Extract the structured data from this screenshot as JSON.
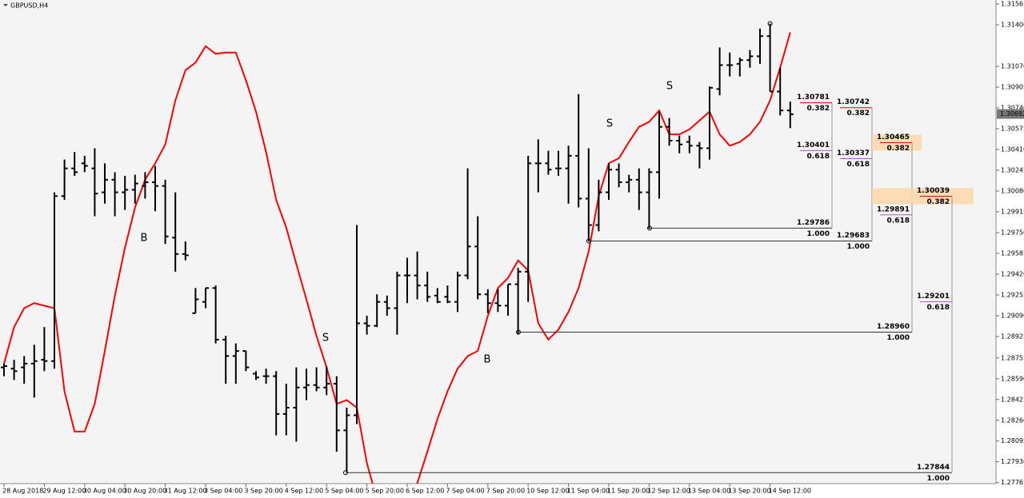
{
  "chart_data": {
    "type": "ohlc",
    "title": "GBPUSD,H4",
    "categories": [
      "28 Aug 2018",
      null,
      null,
      null,
      "29 Aug 12:00",
      null,
      null,
      null,
      "30 Aug 04:00",
      null,
      null,
      null,
      "30 Aug 20:00",
      null,
      null,
      null,
      "31 Aug 12:00",
      null,
      null,
      null,
      "3 Sep 04:00",
      null,
      null,
      null,
      "3 Sep 20:00",
      null,
      null,
      null,
      "4 Sep 12:00",
      null,
      null,
      null,
      "5 Sep 04:00",
      null,
      null,
      null,
      "5 Sep 20:00",
      null,
      null,
      null,
      "6 Sep 12:00",
      null,
      null,
      null,
      "7 Sep 04:00",
      null,
      null,
      null,
      "7 Sep 20:00",
      null,
      null,
      null,
      "10 Sep 12:00",
      null,
      null,
      null,
      "11 Sep 04:00",
      null,
      null,
      null,
      "11 Sep 20:00",
      null,
      null,
      null,
      "12 Sep 12:00",
      null,
      null,
      null,
      "13 Sep 04:00",
      null,
      null,
      null,
      "13 Sep 20:00",
      null,
      null,
      null,
      "14 Sep 12:00",
      null,
      null
    ],
    "open": [
      1.2868,
      1.2867,
      1.2868,
      1.2871,
      1.2874,
      1.2873,
      1.3004,
      1.3026,
      1.303,
      1.3026,
      1.3007,
      1.3017,
      1.3007,
      1.3009,
      1.3012,
      1.3015,
      1.3012,
      1.2971,
      1.2958,
      1.2911,
      1.292,
      1.2931,
      1.289,
      1.2877,
      1.2881,
      1.2863,
      1.2861,
      1.2861,
      1.2831,
      1.2836,
      1.2852,
      1.2854,
      1.2852,
      1.2855,
      1.2818,
      1.283,
      1.2903,
      1.2901,
      1.292,
      1.2915,
      1.2941,
      1.2941,
      1.2933,
      1.2925,
      1.2924,
      1.292,
      1.2941,
      1.2964,
      1.2926,
      1.2919,
      1.2917,
      1.2934,
      1.2944,
      1.303,
      1.303,
      1.3026,
      1.3026,
      1.3036,
      1.3002,
      1.2981,
      1.3007,
      1.3025,
      1.3015,
      1.3017,
      1.3007,
      1.3023,
      1.3059,
      1.3048,
      1.3047,
      1.3044,
      1.3042,
      1.3089,
      1.3108,
      1.3109,
      1.3112,
      1.3115,
      1.3131,
      1.3087,
      1.3072
    ],
    "high": [
      1.2871,
      1.2874,
      1.2877,
      1.2886,
      1.29,
      1.3007,
      1.3033,
      1.3039,
      1.3036,
      1.3042,
      1.303,
      1.3023,
      1.302,
      1.3021,
      1.3023,
      1.3028,
      1.3017,
      1.3007,
      1.2968,
      1.2931,
      1.2931,
      1.2933,
      1.2893,
      1.2887,
      1.2881,
      1.2865,
      1.2867,
      1.2865,
      1.2855,
      1.2868,
      1.2867,
      1.2868,
      1.2869,
      1.2861,
      1.2836,
      1.2981,
      1.2909,
      1.2926,
      1.2925,
      1.2944,
      1.2955,
      1.296,
      1.2944,
      1.2931,
      1.2933,
      1.2944,
      1.3026,
      1.2988,
      1.293,
      1.293,
      1.2934,
      1.2947,
      1.3036,
      1.3049,
      1.304,
      1.304,
      1.3044,
      1.3085,
      1.3042,
      1.3017,
      1.303,
      1.303,
      1.3021,
      1.3026,
      1.3026,
      1.3071,
      1.3066,
      1.3052,
      1.3052,
      1.3047,
      1.3091,
      1.3122,
      1.3118,
      1.3114,
      1.312,
      1.3137,
      1.3141,
      1.3106,
      1.3079
    ],
    "low": [
      1.2861,
      1.2858,
      1.2855,
      1.2844,
      1.2865,
      1.2867,
      1.3001,
      1.302,
      1.3023,
      1.2988,
      1.2998,
      1.2988,
      1.2993,
      1.2998,
      1.3002,
      1.2992,
      1.2966,
      1.2944,
      1.2953,
      1.2911,
      1.2915,
      1.2887,
      1.2855,
      1.2855,
      1.2865,
      1.2858,
      1.2855,
      1.2814,
      1.2814,
      1.2809,
      1.2842,
      1.2849,
      1.2846,
      1.2801,
      1.2785,
      1.2823,
      1.2894,
      1.29,
      1.2909,
      1.2894,
      1.2919,
      1.2922,
      1.292,
      1.2919,
      1.2919,
      1.2912,
      1.2938,
      1.2922,
      1.2911,
      1.2912,
      1.2909,
      1.2894,
      1.292,
      1.3007,
      1.3021,
      1.302,
      1.2998,
      1.2995,
      1.2968,
      1.2976,
      1.3001,
      1.3011,
      1.3007,
      1.2993,
      1.2978,
      1.3002,
      1.3044,
      1.3038,
      1.3038,
      1.3026,
      1.3033,
      1.3084,
      1.3099,
      1.3099,
      1.3106,
      1.3109,
      1.3087,
      1.3068,
      1.3058
    ],
    "close": [
      1.2869,
      1.2865,
      1.2871,
      1.2873,
      1.2873,
      1.3004,
      1.3026,
      1.3023,
      1.3028,
      1.3006,
      1.3017,
      1.3007,
      1.3009,
      1.3014,
      1.3015,
      1.3012,
      1.2972,
      1.2958,
      1.2957,
      1.2922,
      1.2931,
      1.289,
      1.2877,
      1.2881,
      1.2868,
      1.286,
      1.2861,
      1.2831,
      1.2836,
      1.2852,
      1.2854,
      1.2852,
      1.2855,
      1.2818,
      1.283,
      1.2903,
      1.2901,
      1.292,
      1.2915,
      1.2941,
      1.2941,
      1.2933,
      1.2924,
      1.292,
      1.292,
      1.2941,
      1.2964,
      1.2926,
      1.2919,
      1.2917,
      1.2934,
      1.2944,
      1.303,
      1.303,
      1.3025,
      1.3026,
      1.3036,
      1.3002,
      1.2981,
      1.3007,
      1.3025,
      1.3015,
      1.3017,
      1.3007,
      1.3023,
      1.3059,
      1.3048,
      1.3045,
      1.3044,
      1.3042,
      1.309,
      1.3108,
      1.3108,
      1.3112,
      1.3115,
      1.3131,
      1.3087,
      1.3072,
      1.3069
    ],
    "bar_color": "#000000",
    "ma": {
      "color": "#ff0000",
      "values": [
        1.2871,
        1.29,
        1.2915,
        1.2919,
        1.2917,
        1.2915,
        1.2849,
        1.2817,
        1.2817,
        1.2839,
        1.2881,
        1.2925,
        1.2963,
        1.2995,
        1.3017,
        1.303,
        1.3045,
        1.308,
        1.3104,
        1.311,
        1.3123,
        1.3117,
        1.3118,
        1.3118,
        1.3096,
        1.3071,
        1.3039,
        1.3001,
        1.2979,
        1.295,
        1.2922,
        1.2893,
        1.2868,
        1.2839,
        1.2842,
        1.2836,
        1.2792,
        1.2763,
        1.2747,
        1.2747,
        1.2754,
        1.2776,
        1.2801,
        1.2827,
        1.2849,
        1.2867,
        1.2877,
        1.2881,
        1.2909,
        1.2931,
        1.2939,
        1.2953,
        1.2945,
        1.2903,
        1.289,
        1.2898,
        1.2912,
        1.2931,
        1.296,
        1.3004,
        1.303,
        1.3034,
        1.3047,
        1.3059,
        1.3063,
        1.3072,
        1.3053,
        1.3053,
        1.3057,
        1.3064,
        1.3071,
        1.3053,
        1.3044,
        1.3047,
        1.3053,
        1.3063,
        1.308,
        1.3106,
        1.3134
      ]
    },
    "ylim": [
      1.27757,
      1.31597
    ],
    "yticks": [
      1.31565,
      {
        "value": 1.314,
        "label": "1.31400"
      },
      {
        "value": 1.3107,
        "label": "1.31070"
      },
      1.30905,
      {
        "value": 1.3074,
        "label": "1.30740"
      },
      1.30575,
      {
        "value": 1.3041,
        "label": "1.30410"
      },
      1.30245,
      {
        "value": 1.3008,
        "label": "1.30080"
      },
      1.29915,
      {
        "value": 1.2975,
        "label": "1.29750"
      },
      1.29585,
      {
        "value": 1.2942,
        "label": "1.29420"
      },
      1.29255,
      {
        "value": 1.2909,
        "label": "1.29090"
      },
      1.28925,
      1.28755,
      {
        "value": 1.2859,
        "label": "1.28590"
      },
      1.28425,
      {
        "value": 1.2826,
        "label": "1.28260"
      },
      1.28095,
      {
        "value": 1.2793,
        "label": "1.27930"
      },
      1.27765
    ],
    "current_price": 1.30692,
    "signals": [
      {
        "text": "B",
        "color": "#2020c0"
      },
      {
        "text": "S",
        "color": "#e02020"
      },
      {
        "text": "B",
        "color": "#2020c0"
      },
      {
        "text": "S",
        "color": "#e02020"
      },
      {
        "text": "S",
        "color": "#e02020"
      }
    ],
    "fibs": [
      {
        "levels": [
          {
            "price": 1.30781,
            "ratio": 0.382,
            "color": "#dd0000"
          },
          {
            "price": 1.30401,
            "ratio": 0.618,
            "color": "#b050d0"
          },
          {
            "price": 1.29786,
            "ratio": {
              "value": 1,
              "label": "1.000"
            },
            "color": "#000000"
          }
        ]
      },
      {
        "levels": [
          {
            "price": 1.30742,
            "ratio": 0.382,
            "color": "#dd0000"
          },
          {
            "price": 1.30337,
            "ratio": 0.618,
            "color": "#b050d0"
          },
          {
            "price": 1.29683,
            "ratio": {
              "value": 1,
              "label": "1.000"
            },
            "color": "#000000"
          }
        ]
      },
      {
        "levels": [
          {
            "price": 1.30465,
            "ratio": 0.382,
            "color": "#dd0000"
          },
          {
            "price": 1.29891,
            "ratio": 0.618,
            "color": "#b050d0"
          },
          {
            "price": {
              "value": 1.2896,
              "label": "1.28960"
            },
            "ratio": {
              "value": 1,
              "label": "1.000"
            },
            "color": "#000000"
          }
        ]
      },
      {
        "levels": [
          {
            "price": 1.30039,
            "ratio": 0.382,
            "color": "#dd0000"
          },
          {
            "price": 1.29201,
            "ratio": 0.618,
            "color": "#b050d0"
          },
          {
            "price": 1.27844,
            "ratio": {
              "value": 1,
              "label": "1.000"
            },
            "color": "#000000"
          }
        ]
      }
    ]
  }
}
